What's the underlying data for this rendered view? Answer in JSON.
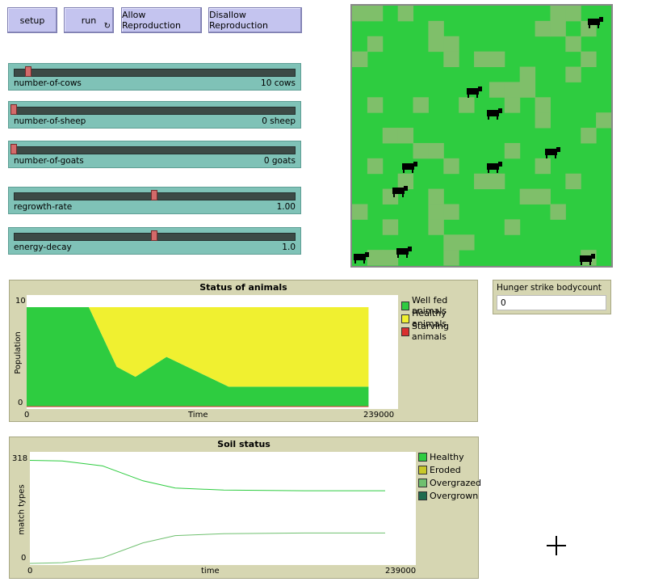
{
  "buttons": {
    "setup": "setup",
    "run": "run",
    "allow": "Allow Reproduction",
    "disallow": "Disallow Reproduction"
  },
  "sliders": [
    {
      "name": "number-of-cows",
      "value": "10 cows",
      "fraction": 0.05
    },
    {
      "name": "number-of-sheep",
      "value": "0 sheep",
      "fraction": 0.0
    },
    {
      "name": "number-of-goats",
      "value": "0 goats",
      "fraction": 0.0
    },
    {
      "name": "regrowth-rate",
      "value": "1.00",
      "fraction": 0.5
    },
    {
      "name": "energy-decay",
      "value": "1.0",
      "fraction": 0.5
    }
  ],
  "monitor": {
    "label": "Hunger strike bodycount",
    "value": "0"
  },
  "colors": {
    "grass": "#2ecc40",
    "patchy": "#7fbf6a",
    "well_fed": "#2ecc40",
    "healthy": "#f0f030",
    "starving": "#d93030",
    "eroded": "#c8c82a",
    "overgrazed": "#6fc06f",
    "overgrown": "#1f6b4f"
  },
  "plot1": {
    "title": "Status of animals",
    "ylabel": "Population",
    "xlabel": "Time",
    "ymin": "0",
    "ymax": "10",
    "xmin": "0",
    "xmax": "239000",
    "legend": [
      "Well fed animals",
      "Healthy animals",
      "Starving animals"
    ]
  },
  "plot2": {
    "title": "Soil status",
    "ylabel": "match types",
    "xlabel": "time",
    "ymin": "0",
    "ymax": "318",
    "xmin": "0",
    "xmax": "239000",
    "legend": [
      "Healthy",
      "Eroded",
      "Overgrazed",
      "Overgrown"
    ]
  },
  "chart_data": [
    {
      "type": "area",
      "title": "Status of animals",
      "xlabel": "Time",
      "ylabel": "Population",
      "xlim": [
        0,
        239000
      ],
      "ylim": [
        0,
        10
      ],
      "series": [
        {
          "name": "Well fed animals",
          "x": [
            0,
            40000,
            58000,
            70000,
            90000,
            130000,
            220000
          ],
          "values": [
            10,
            10,
            4,
            3,
            5,
            2,
            2
          ]
        },
        {
          "name": "Healthy animals",
          "x": [
            0,
            40000,
            58000,
            70000,
            90000,
            130000,
            220000
          ],
          "values": [
            0,
            0,
            6,
            7,
            5,
            8,
            8
          ]
        },
        {
          "name": "Starving animals",
          "x": [
            0,
            220000
          ],
          "values": [
            0,
            0
          ]
        }
      ]
    },
    {
      "type": "line",
      "title": "Soil status",
      "xlabel": "time",
      "ylabel": "match types",
      "xlim": [
        0,
        239000
      ],
      "ylim": [
        0,
        318
      ],
      "series": [
        {
          "name": "Healthy",
          "x": [
            0,
            20000,
            45000,
            70000,
            90000,
            120000,
            170000,
            220000
          ],
          "values": [
            312,
            310,
            295,
            250,
            228,
            222,
            220,
            220
          ]
        },
        {
          "name": "Overgrazed",
          "x": [
            0,
            20000,
            45000,
            70000,
            90000,
            120000,
            170000,
            220000
          ],
          "values": [
            0,
            2,
            17,
            62,
            84,
            90,
            92,
            92
          ]
        }
      ]
    }
  ]
}
